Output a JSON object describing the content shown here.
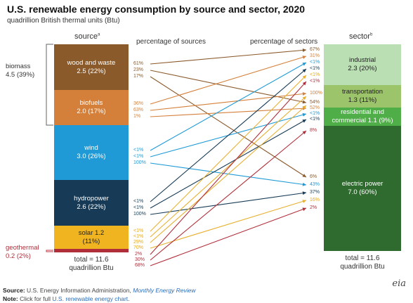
{
  "title": "U.S. renewable energy consumption by source and sector, 2020",
  "subtitle": "quadrillion British thermal units (Btu)",
  "headers": {
    "source": "source",
    "source_sup": "a",
    "pct_sources": "percentage of sources",
    "pct_sectors": "percentage of sectors",
    "sector": "sector",
    "sector_sup": "b"
  },
  "biomass": {
    "name": "biomass",
    "value": "4.5 (39%)"
  },
  "geothermal": {
    "name": "geothermal",
    "value": "0.2 (2%)"
  },
  "sources": {
    "wood": {
      "name": "wood and waste",
      "value": "2.5 (22%)",
      "color": "#8a5a2a"
    },
    "biofuels": {
      "name": "biofuels",
      "value": "2.0 (17%)",
      "color": "#d4803a"
    },
    "wind": {
      "name": "wind",
      "value": "3.0 (26%)",
      "color": "#1f9ad6"
    },
    "hydro": {
      "name": "hydropower",
      "value": "2.6 (22%)",
      "color": "#173b56"
    },
    "solar": {
      "name": "solar 1.2",
      "value": "(11%)",
      "color": "#f0b420"
    },
    "geo_color": "#b02e3a"
  },
  "sectors": {
    "industrial": {
      "name": "industrial",
      "value": "2.3 (20%)",
      "color": "#b9dfb3"
    },
    "transportation": {
      "name": "transportation",
      "value": "1.3  (11%)",
      "color": "#9cc46a"
    },
    "residential": {
      "name": "residential and",
      "name2": "commercial 1.1 (9%)",
      "color": "#4fae48"
    },
    "electric": {
      "name": "electric power",
      "value": "7.0  (60%)",
      "color": "#2f6b2f"
    }
  },
  "source_pcts": {
    "wood": [
      "61%",
      "23%",
      "17%"
    ],
    "biofuels": [
      "36%",
      "63%",
      "1%"
    ],
    "wind": [
      "<1%",
      "<1%",
      "100%"
    ],
    "hydro": [
      "<1%",
      "<1%",
      "100%"
    ],
    "solar": [
      "<1%",
      "<1%",
      "29%",
      "70%"
    ],
    "geo": [
      "2%",
      "30%",
      "68%"
    ]
  },
  "sector_pcts": {
    "industrial": [
      "67%",
      "31%",
      "<1%",
      "<1%",
      "<1%",
      "<1%"
    ],
    "transportation": [
      "100%",
      "54%"
    ],
    "residential": [
      "52%",
      "<1%",
      "<1%",
      "8%"
    ],
    "electric": [
      "6%",
      "43%",
      "37%",
      "16%",
      "2%"
    ]
  },
  "totals": {
    "source_line1": "total = 11.6",
    "source_line2": "quadrillion Btu",
    "sector_line1": "total = 11.6",
    "sector_line2": "quadrillion Btu"
  },
  "footer": {
    "source_label": "Source:",
    "source_text": "U.S. Energy Information Administration,",
    "source_link": "Monthly Energy Review",
    "note_label": "Note:",
    "note_text": "Click for full",
    "note_link": "U.S. renewable energy chart",
    "note_end": "."
  },
  "logo": "eia"
}
